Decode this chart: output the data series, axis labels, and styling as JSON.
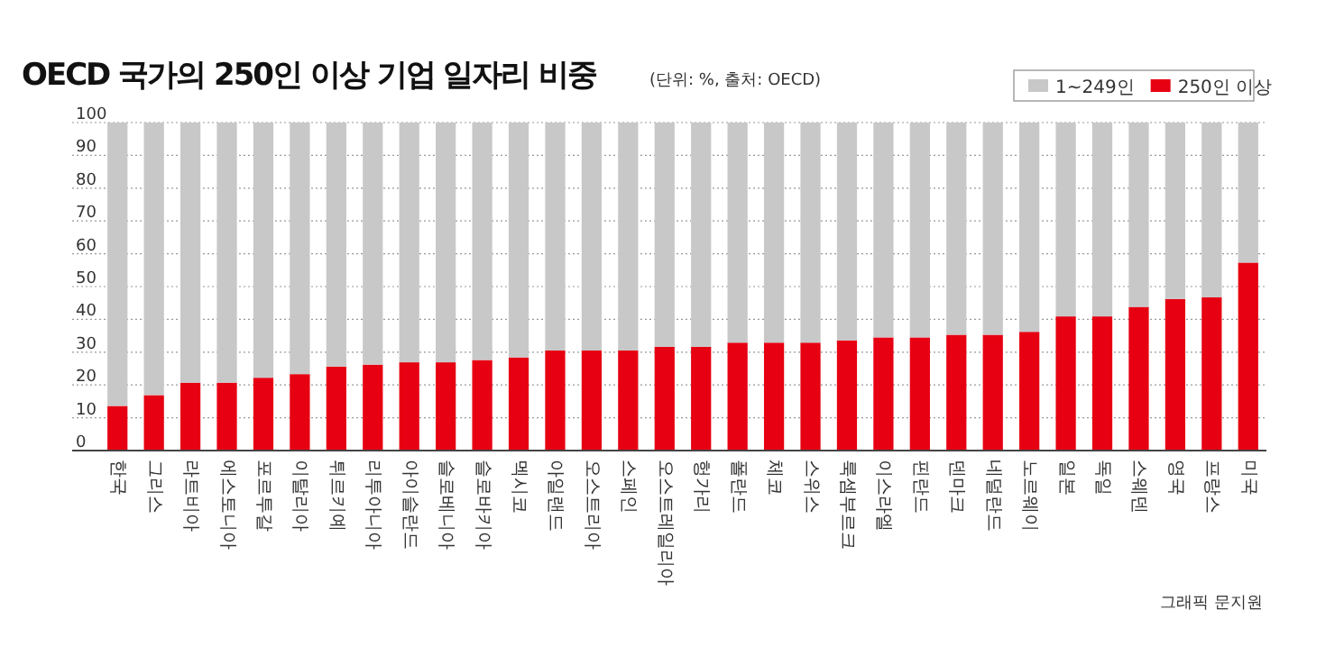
{
  "chart_data": {
    "type": "bar",
    "stacked": true,
    "title": "OECD 국가의 250인 이상 기업 일자리 비중",
    "subtitle": "(단위: %, 출처: OECD)",
    "categories": [
      "한국",
      "그리스",
      "라트비아",
      "에스토니아",
      "포르투갈",
      "이탈리아",
      "튀르키예",
      "리투아니아",
      "아이슬란드",
      "슬로베니아",
      "슬로바키아",
      "멕시코",
      "아일랜드",
      "오스트리아",
      "스페인",
      "오스트레일리아",
      "헝가리",
      "폴란드",
      "체코",
      "스위스",
      "룩셈부르크",
      "이스라엘",
      "핀란드",
      "덴마크",
      "네덜란드",
      "노르웨이",
      "일본",
      "독일",
      "스웨덴",
      "영국",
      "프랑스",
      "미국"
    ],
    "series": [
      {
        "name": "250인 이상",
        "color": "#e60012",
        "values": [
          13.6,
          16.9,
          20.7,
          20.7,
          22.2,
          23.3,
          25.6,
          26.2,
          26.9,
          26.9,
          27.6,
          28.4,
          30.5,
          30.5,
          30.5,
          31.6,
          31.6,
          32.9,
          32.9,
          32.9,
          33.6,
          34.5,
          34.5,
          35.3,
          35.3,
          36.2,
          40.9,
          40.9,
          43.8,
          46.2,
          46.7,
          57.3
        ]
      },
      {
        "name": "1~249인",
        "color": "#c8c8c8",
        "values": [
          86.4,
          83.1,
          79.3,
          79.3,
          77.8,
          76.7,
          74.4,
          73.8,
          73.1,
          73.1,
          72.4,
          71.6,
          69.5,
          69.5,
          69.5,
          68.4,
          68.4,
          67.1,
          67.1,
          67.1,
          66.4,
          65.5,
          65.5,
          64.7,
          64.7,
          63.8,
          59.1,
          59.1,
          56.2,
          53.8,
          53.3,
          42.7
        ]
      }
    ],
    "ylim": [
      0,
      100
    ],
    "yticks": [
      0,
      10,
      20,
      30,
      40,
      50,
      60,
      70,
      80,
      90,
      100
    ],
    "grid": "y",
    "legend": "top right",
    "annotations": [
      "그래픽 문지원"
    ]
  }
}
